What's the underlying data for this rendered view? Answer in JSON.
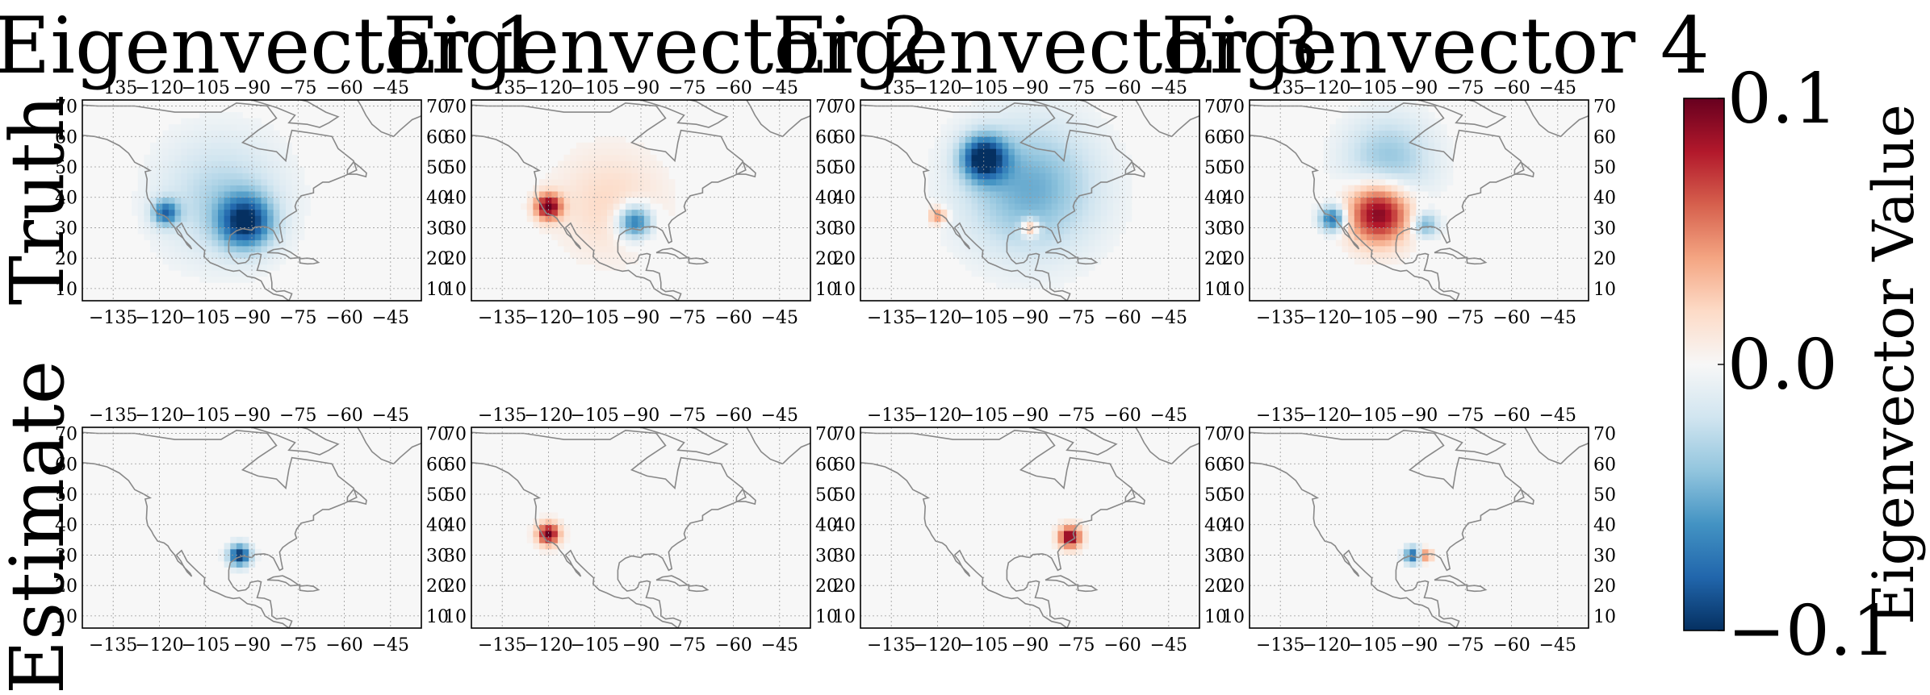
{
  "colors": {
    "background": "#f7f7f7",
    "coastline": "#888888",
    "grid": "#999999",
    "colormap": [
      "#053061",
      "#2166ac",
      "#4393c3",
      "#92c5de",
      "#d1e5f0",
      "#f7f7f7",
      "#fddbc7",
      "#f4a582",
      "#d6604d",
      "#b2182b",
      "#67001f"
    ]
  },
  "chart_data": {
    "type": "heatmap",
    "colormap": "RdBu_r",
    "grid": true,
    "column_titles": [
      "Eigenvector 1",
      "Eigenvector 2",
      "Eigenvector 3",
      "Eigenvector 4"
    ],
    "row_labels": [
      "Truth",
      "Estimate"
    ],
    "lon_ticks": [
      "−135",
      "−120",
      "−105",
      "−90",
      "−75",
      "−60",
      "−45"
    ],
    "lat_ticks": [
      "10",
      "20",
      "30",
      "40",
      "50",
      "60",
      "70"
    ],
    "xlim": [
      -145,
      -35
    ],
    "ylim": [
      6,
      72
    ],
    "colorbar": {
      "label": "Eigenvector Value",
      "ticks": [
        "0.1",
        "0.0",
        "−0.1"
      ],
      "range": [
        -0.1,
        0.1
      ]
    },
    "panels": [
      {
        "row": "Truth",
        "column": "Eigenvector 1",
        "blobs": [
          {
            "lon": -92,
            "lat": 32,
            "value": -0.09,
            "spread": 6
          },
          {
            "lon": -118,
            "lat": 35,
            "value": -0.07,
            "spread": 3
          },
          {
            "lon": -100,
            "lat": 40,
            "value": -0.03,
            "spread": 14
          }
        ]
      },
      {
        "row": "Truth",
        "column": "Eigenvector 2",
        "blobs": [
          {
            "lon": -120,
            "lat": 37,
            "value": 0.1,
            "spread": 3
          },
          {
            "lon": -92,
            "lat": 32,
            "value": -0.08,
            "spread": 4
          },
          {
            "lon": -100,
            "lat": 38,
            "value": 0.02,
            "spread": 12
          }
        ]
      },
      {
        "row": "Truth",
        "column": "Eigenvector 3",
        "blobs": [
          {
            "lon": -105,
            "lat": 53,
            "value": -0.1,
            "spread": 5
          },
          {
            "lon": -90,
            "lat": 43,
            "value": -0.05,
            "spread": 15
          },
          {
            "lon": -120,
            "lat": 34,
            "value": 0.05,
            "spread": 2
          },
          {
            "lon": -90,
            "lat": 30,
            "value": 0.06,
            "spread": 2
          }
        ]
      },
      {
        "row": "Truth",
        "column": "Eigenvector 4",
        "blobs": [
          {
            "lon": -103,
            "lat": 35,
            "value": 0.1,
            "spread": 7
          },
          {
            "lon": -118,
            "lat": 33,
            "value": -0.08,
            "spread": 3
          },
          {
            "lon": -100,
            "lat": 52,
            "value": -0.04,
            "spread": 10
          },
          {
            "lon": -88,
            "lat": 31,
            "value": -0.05,
            "spread": 3
          }
        ]
      },
      {
        "row": "Estimate",
        "column": "Eigenvector 1",
        "blobs": [
          {
            "lon": -94,
            "lat": 30,
            "value": -0.1,
            "spread": 2.5
          }
        ]
      },
      {
        "row": "Estimate",
        "column": "Eigenvector 2",
        "blobs": [
          {
            "lon": -120,
            "lat": 37,
            "value": 0.1,
            "spread": 2.5
          }
        ]
      },
      {
        "row": "Estimate",
        "column": "Eigenvector 3",
        "blobs": [
          {
            "lon": -77,
            "lat": 36,
            "value": 0.1,
            "spread": 2.5
          }
        ]
      },
      {
        "row": "Estimate",
        "column": "Eigenvector 4",
        "blobs": [
          {
            "lon": -92,
            "lat": 30,
            "value": -0.08,
            "spread": 2
          },
          {
            "lon": -88,
            "lat": 30,
            "value": 0.06,
            "spread": 1.5
          }
        ]
      }
    ]
  }
}
